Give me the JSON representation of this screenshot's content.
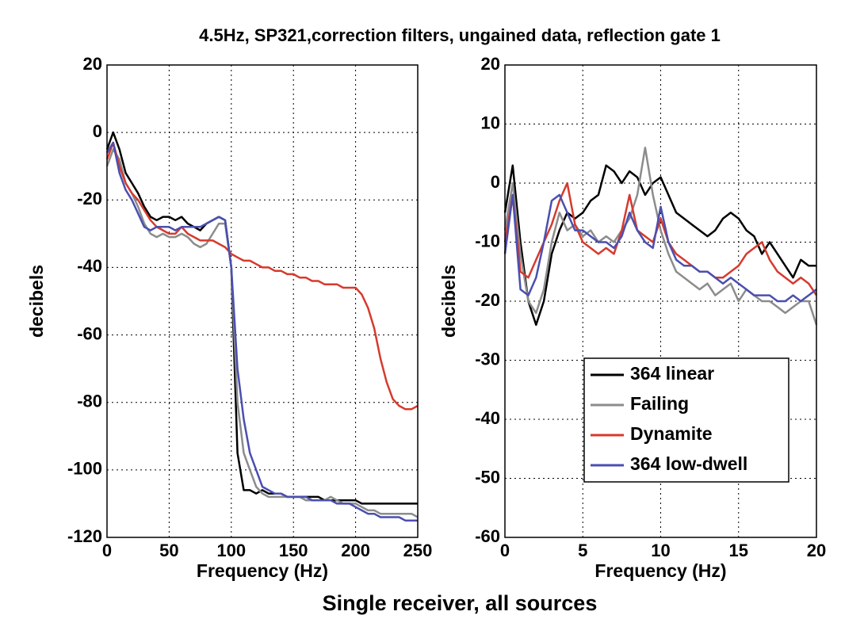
{
  "title": "4.5Hz, SP321,correction filters, ungained data, reflection gate 1",
  "caption": "Single receiver, all sources",
  "chart_data": [
    {
      "type": "line",
      "xlabel": "Frequency (Hz)",
      "ylabel": "decibels",
      "xlim": [
        0,
        250
      ],
      "xticks": [
        0,
        50,
        100,
        150,
        200,
        250
      ],
      "ylim": [
        -120,
        20
      ],
      "yticks": [
        -120,
        -100,
        -80,
        -60,
        -40,
        -20,
        0,
        20
      ],
      "grid": true,
      "x": [
        0,
        5,
        10,
        15,
        20,
        25,
        30,
        35,
        40,
        45,
        50,
        55,
        60,
        65,
        70,
        75,
        80,
        85,
        90,
        95,
        100,
        105,
        110,
        115,
        120,
        125,
        130,
        135,
        140,
        145,
        150,
        155,
        160,
        165,
        170,
        175,
        180,
        185,
        190,
        195,
        200,
        205,
        210,
        215,
        220,
        225,
        230,
        235,
        240,
        245,
        250
      ],
      "series": [
        {
          "color": "#000000",
          "values": [
            -5,
            0,
            -5,
            -12,
            -15,
            -18,
            -22,
            -25,
            -26,
            -25,
            -25,
            -26,
            -25,
            -27,
            -28,
            -29,
            -27,
            -26,
            -25,
            -26,
            -40,
            -95,
            -106,
            -106,
            -107,
            -106,
            -107,
            -107,
            -107,
            -108,
            -108,
            -108,
            -108,
            -108,
            -108,
            -109,
            -109,
            -109,
            -109,
            -109,
            -109,
            -110,
            -110,
            -110,
            -110,
            -110,
            -110,
            -110,
            -110,
            -110,
            -110
          ]
        },
        {
          "color": "#8c8c8c",
          "values": [
            -10,
            -5,
            -8,
            -15,
            -18,
            -22,
            -27,
            -30,
            -31,
            -30,
            -31,
            -31,
            -30,
            -31,
            -33,
            -34,
            -33,
            -30,
            -27,
            -27,
            -40,
            -80,
            -95,
            -100,
            -105,
            -107,
            -108,
            -108,
            -108,
            -108,
            -108,
            -108,
            -109,
            -109,
            -109,
            -109,
            -108,
            -109,
            -110,
            -110,
            -110,
            -111,
            -112,
            -112,
            -113,
            -113,
            -113,
            -113,
            -113,
            -113,
            -114
          ]
        },
        {
          "color": "#d63a2e",
          "values": [
            -8,
            -3,
            -10,
            -15,
            -18,
            -20,
            -23,
            -26,
            -28,
            -29,
            -30,
            -30,
            -28,
            -30,
            -31,
            -32,
            -32,
            -32,
            -33,
            -34,
            -36,
            -37,
            -38,
            -38,
            -39,
            -40,
            -40,
            -41,
            -41,
            -42,
            -42,
            -43,
            -43,
            -44,
            -44,
            -45,
            -45,
            -45,
            -46,
            -46,
            -46,
            -48,
            -52,
            -58,
            -67,
            -74,
            -79,
            -81,
            -82,
            -82,
            -81
          ]
        },
        {
          "color": "#4a4fb0",
          "values": [
            -6,
            -3,
            -12,
            -17,
            -20,
            -24,
            -28,
            -29,
            -28,
            -28,
            -28,
            -29,
            -28,
            -28,
            -28,
            -28,
            -27,
            -26,
            -25,
            -26,
            -40,
            -70,
            -85,
            -95,
            -100,
            -105,
            -106,
            -107,
            -107,
            -108,
            -108,
            -108,
            -108,
            -109,
            -109,
            -109,
            -109,
            -110,
            -110,
            -110,
            -111,
            -112,
            -113,
            -113,
            -114,
            -114,
            -114,
            -114,
            -115,
            -115,
            -115
          ]
        }
      ]
    },
    {
      "type": "line",
      "xlabel": "Frequency (Hz)",
      "ylabel": "decibels",
      "xlim": [
        0,
        20
      ],
      "xticks": [
        0,
        5,
        10,
        15,
        20
      ],
      "ylim": [
        -60,
        20
      ],
      "yticks": [
        -60,
        -50,
        -40,
        -30,
        -20,
        -10,
        0,
        10,
        20
      ],
      "grid": true,
      "legend": "lower right",
      "x": [
        0,
        0.5,
        1,
        1.5,
        2,
        2.5,
        3,
        3.5,
        4,
        4.5,
        5,
        5.5,
        6,
        6.5,
        7,
        7.5,
        8,
        8.5,
        9,
        9.5,
        10,
        10.5,
        11,
        11.5,
        12,
        12.5,
        13,
        13.5,
        14,
        14.5,
        15,
        15.5,
        16,
        16.5,
        17,
        17.5,
        18,
        18.5,
        19,
        19.5,
        20
      ],
      "series": [
        {
          "name": "364 linear",
          "color": "#000000",
          "values": [
            -5,
            3,
            -10,
            -20,
            -24,
            -20,
            -12,
            -8,
            -5,
            -6,
            -5,
            -3,
            -2,
            3,
            2,
            0,
            2,
            1,
            -2,
            0,
            1,
            -2,
            -5,
            -6,
            -7,
            -8,
            -9,
            -8,
            -6,
            -5,
            -6,
            -8,
            -9,
            -12,
            -10,
            -12,
            -14,
            -16,
            -13,
            -14,
            -14
          ]
        },
        {
          "name": "Failing",
          "color": "#8c8c8c",
          "values": [
            -8,
            0,
            -12,
            -20,
            -22,
            -18,
            -10,
            -5,
            -8,
            -7,
            -9,
            -8,
            -10,
            -9,
            -10,
            -8,
            -6,
            -2,
            6,
            -2,
            -8,
            -12,
            -15,
            -16,
            -17,
            -18,
            -17,
            -19,
            -18,
            -17,
            -20,
            -18,
            -19,
            -20,
            -20,
            -21,
            -22,
            -21,
            -20,
            -20,
            -24
          ]
        },
        {
          "name": "Dynamite",
          "color": "#d63a2e",
          "values": [
            -10,
            -2,
            -15,
            -16,
            -13,
            -10,
            -7,
            -3,
            0,
            -7,
            -10,
            -11,
            -12,
            -11,
            -12,
            -8,
            -2,
            -8,
            -9,
            -10,
            -6,
            -10,
            -12,
            -13,
            -14,
            -15,
            -15,
            -16,
            -16,
            -15,
            -14,
            -12,
            -11,
            -10,
            -13,
            -15,
            -16,
            -17,
            -16,
            -17,
            -19
          ]
        },
        {
          "name": "364 low-dwell",
          "color": "#4a4fb0",
          "values": [
            -12,
            -2,
            -18,
            -19,
            -16,
            -10,
            -3,
            -2,
            -5,
            -8,
            -8,
            -9,
            -10,
            -10,
            -11,
            -9,
            -5,
            -8,
            -10,
            -11,
            -4,
            -10,
            -13,
            -14,
            -14,
            -15,
            -15,
            -16,
            -17,
            -16,
            -17,
            -18,
            -19,
            -19,
            -19,
            -20,
            -20,
            -19,
            -20,
            -19,
            -18
          ]
        }
      ]
    }
  ]
}
